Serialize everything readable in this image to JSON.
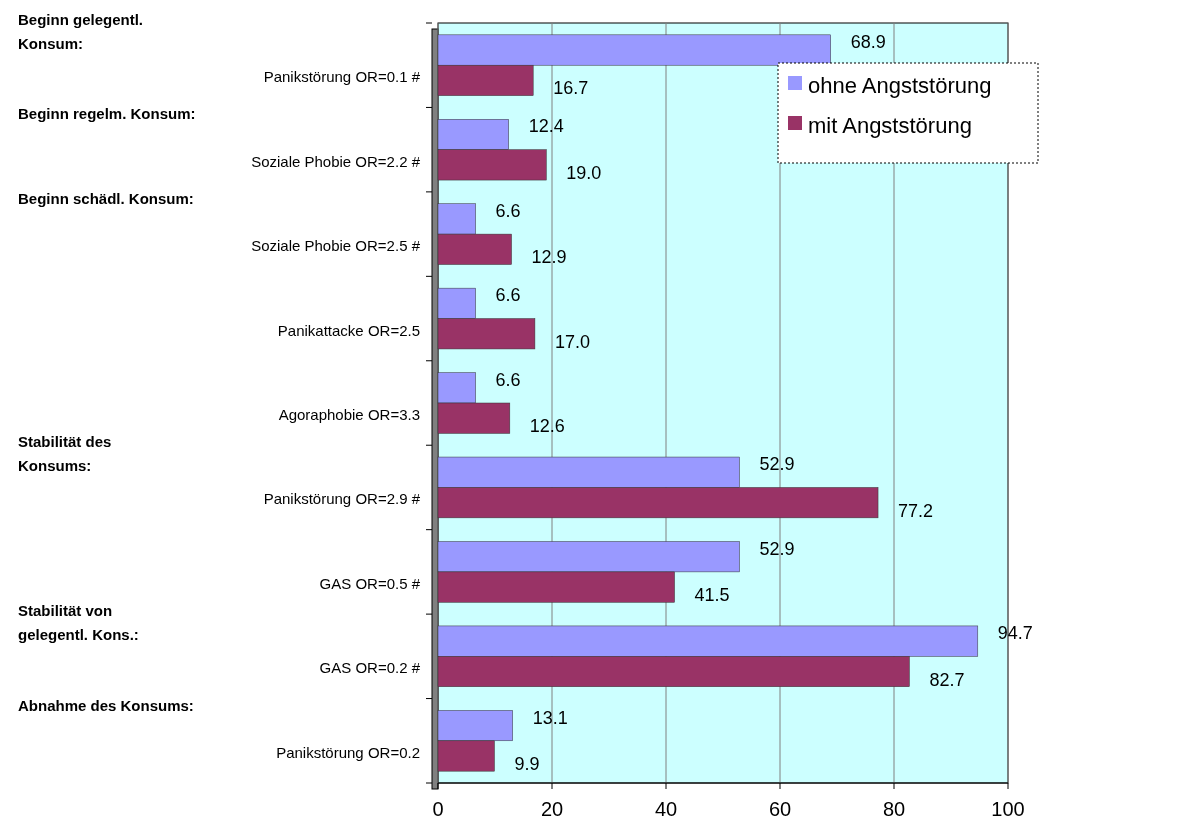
{
  "chart_data": {
    "type": "bar",
    "orientation": "horizontal",
    "categories": [
      "Panikstörung OR=0.1 #",
      "Soziale Phobie OR=2.2 #",
      "Soziale Phobie OR=2.5 #",
      "Panikattacke OR=2.5",
      "Agoraphobie OR=3.3",
      "Panikstörung OR=2.9 #",
      "GAS OR=0.5 #",
      "GAS OR=0.2 #",
      "Panikstörung OR=0.2"
    ],
    "series": [
      {
        "name": "ohne Angststörung",
        "color": "#9999ff",
        "values": [
          68.9,
          12.4,
          6.6,
          6.6,
          6.6,
          52.9,
          52.9,
          94.7,
          13.1
        ],
        "value_labels": [
          "68.9",
          "12.4",
          "6.6",
          "6.6",
          "6.6",
          "52.9",
          "52.9",
          "94.7",
          "13.1"
        ]
      },
      {
        "name": "mit Angststörung",
        "color": "#993366",
        "values": [
          16.7,
          19.0,
          12.9,
          17.0,
          12.6,
          77.2,
          41.5,
          82.7,
          9.9
        ],
        "value_labels": [
          "16.7",
          "19.0",
          "12.9",
          "17.0",
          "12.6",
          "77.2",
          "41.5",
          "82.7",
          "9.9"
        ]
      }
    ],
    "xlim": [
      0,
      100
    ],
    "xticks": [
      0,
      20,
      40,
      60,
      80,
      100
    ],
    "grid": "x",
    "legend": "top right",
    "annotations": [
      "Beginn gelegentl. Konsum:",
      "Beginn regelm. Konsum:",
      "Beginn schädl. Konsum:",
      "Stabilität des Konsums:",
      "Stabilität von gelegentl. Kons.:",
      "Abnahme des Konsums:"
    ]
  }
}
